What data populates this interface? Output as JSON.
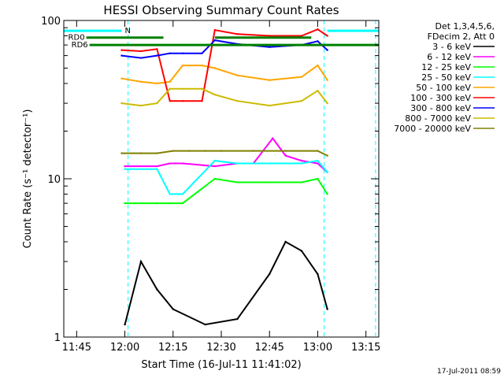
{
  "chart_data": {
    "type": "line",
    "title": "HESSI Observing Summary Count Rates",
    "xlabel": "Start Time (16-Jul-11 11:41:02)",
    "ylabel": "Count Rate (s⁻¹ detector⁻¹)",
    "y_scale": "log",
    "ylim": [
      1,
      100
    ],
    "xlim": [
      "11:41",
      "13:19"
    ],
    "x_ticks": [
      "11:45",
      "12:00",
      "12:15",
      "12:30",
      "12:45",
      "13:00",
      "13:15"
    ],
    "y_ticks": [
      "1",
      "10",
      "100"
    ],
    "footer_timestamp": "17-Jul-2011 08:59",
    "legend_position": "right",
    "legend_header": [
      "Det 1,3,4,5,6,",
      "FDecim 2, Att 0"
    ],
    "series": [
      {
        "name": "3 - 6 keV",
        "color": "#000000",
        "x": [
          "12:00",
          "12:05",
          "12:10",
          "12:15",
          "12:25",
          "12:35",
          "12:45",
          "12:50",
          "12:55",
          "13:00",
          "13:03"
        ],
        "y": [
          1.2,
          3.0,
          2.0,
          1.5,
          1.2,
          1.3,
          2.5,
          4.0,
          3.5,
          2.5,
          1.5
        ]
      },
      {
        "name": "6 - 12 keV",
        "color": "#ff00ff",
        "x": [
          "12:00",
          "12:10",
          "12:14",
          "12:18",
          "12:28",
          "12:35",
          "12:40",
          "12:46",
          "12:50",
          "12:55",
          "13:00",
          "13:03"
        ],
        "y": [
          12,
          12,
          12.5,
          12.5,
          12,
          12.5,
          12.5,
          18,
          14,
          13,
          12.5,
          11
        ]
      },
      {
        "name": "12 - 25 keV",
        "color": "#00ff00",
        "x": [
          "12:00",
          "12:10",
          "12:14",
          "12:18",
          "12:28",
          "12:35",
          "12:45",
          "12:55",
          "13:00",
          "13:03"
        ],
        "y": [
          7,
          7,
          7,
          7,
          10,
          9.5,
          9.5,
          9.5,
          10,
          8
        ]
      },
      {
        "name": "25 - 50 keV",
        "color": "#00ffff",
        "x": [
          "12:00",
          "12:10",
          "12:14",
          "12:18",
          "12:28",
          "12:35",
          "12:45",
          "12:55",
          "13:00",
          "13:03"
        ],
        "y": [
          11.5,
          11.5,
          8,
          8,
          13,
          12.5,
          12.5,
          12.5,
          13,
          11
        ]
      },
      {
        "name": "50 - 100 keV",
        "color": "#ffa500",
        "x": [
          "11:59",
          "12:05",
          "12:10",
          "12:14",
          "12:18",
          "12:24",
          "12:28",
          "12:35",
          "12:45",
          "12:55",
          "13:00",
          "13:03"
        ],
        "y": [
          43,
          41,
          40,
          41,
          52,
          52,
          50,
          45,
          42,
          44,
          52,
          42
        ]
      },
      {
        "name": "100 - 300 keV",
        "color": "#ff0000",
        "x": [
          "11:59",
          "12:05",
          "12:10",
          "12:14",
          "12:18",
          "12:24",
          "12:28",
          "12:35",
          "12:45",
          "12:55",
          "13:00",
          "13:03"
        ],
        "y": [
          65,
          64,
          66,
          31,
          31,
          31,
          87,
          82,
          80,
          80,
          88,
          80
        ]
      },
      {
        "name": "300 - 800 keV",
        "color": "#0000ff",
        "x": [
          "11:59",
          "12:05",
          "12:10",
          "12:14",
          "12:18",
          "12:24",
          "12:28",
          "12:35",
          "12:45",
          "12:55",
          "13:00",
          "13:03"
        ],
        "y": [
          60,
          58,
          60,
          62,
          62,
          62,
          75,
          71,
          68,
          70,
          74,
          65
        ]
      },
      {
        "name": "800 - 7000 keV",
        "color": "#ccbb00",
        "x": [
          "11:59",
          "12:05",
          "12:10",
          "12:14",
          "12:18",
          "12:24",
          "12:28",
          "12:35",
          "12:45",
          "12:55",
          "13:00",
          "13:03"
        ],
        "y": [
          30,
          29,
          30,
          37,
          37,
          37,
          34,
          31,
          29,
          31,
          36,
          30
        ]
      },
      {
        "name": "7000 - 20000 keV",
        "color": "#808000",
        "x": [
          "11:59",
          "12:05",
          "12:10",
          "12:15",
          "12:20",
          "12:25",
          "12:30",
          "12:40",
          "12:50",
          "13:00",
          "13:03"
        ],
        "y": [
          14.5,
          14.5,
          14.5,
          15,
          15,
          15,
          15,
          15,
          15,
          15,
          14
        ]
      }
    ],
    "markers": [
      {
        "label": "N",
        "color": "#00ffff",
        "y": 86,
        "x_from": "11:41",
        "x_to": "11:59"
      },
      {
        "label": "N",
        "color": "#00ffff",
        "y": 86,
        "x_from": "13:03",
        "x_to": "13:19"
      },
      {
        "label": "RD0",
        "color": "#008000",
        "y": 78,
        "x_from": "11:48",
        "x_to": "12:12"
      },
      {
        "label": "RD6",
        "color": "#008000",
        "y": 70,
        "x_from": "11:49",
        "x_to": "13:19"
      }
    ],
    "marker_bars": [
      {
        "color": "#008000",
        "y": 78,
        "x_from": "12:28",
        "x_to": "12:58"
      }
    ],
    "vertical_lines": [
      {
        "x": "11:41",
        "color": "#00ffff",
        "dashed": false
      },
      {
        "x": "12:01",
        "color": "#00ffff",
        "dashed": true
      },
      {
        "x": "13:02",
        "color": "#00ffff",
        "dashed": true
      },
      {
        "x": "13:18",
        "color": "#00ffff",
        "dashed": true
      }
    ]
  }
}
